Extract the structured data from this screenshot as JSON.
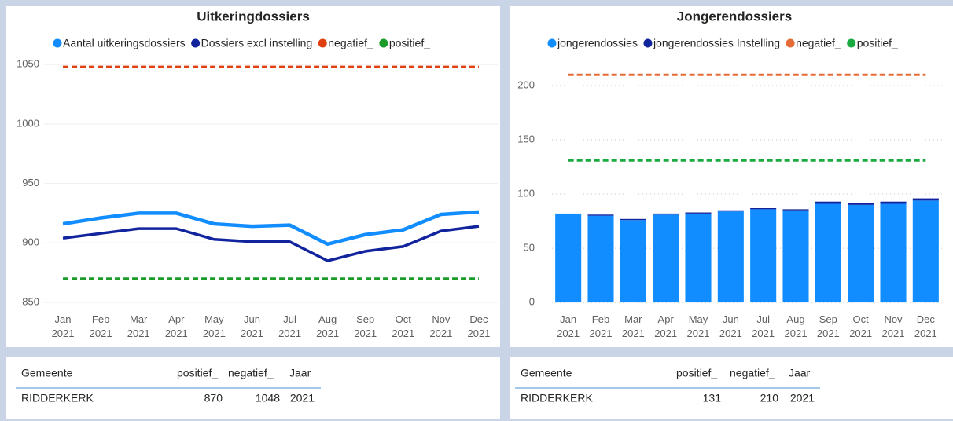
{
  "chart_data": [
    {
      "type": "line",
      "title": "Uitkeringdossiers",
      "categories": [
        "Jan 2021",
        "Feb 2021",
        "Mar 2021",
        "Apr 2021",
        "May 2021",
        "Jun 2021",
        "Jul 2021",
        "Aug 2021",
        "Sep 2021",
        "Oct 2021",
        "Nov 2021",
        "Dec 2021"
      ],
      "series": [
        {
          "name": "Aantal uitkeringsdossiers",
          "color": "#118dff",
          "values": [
            916,
            921,
            925,
            925,
            916,
            914,
            915,
            899,
            907,
            911,
            924,
            926
          ]
        },
        {
          "name": "Dossiers excl instelling",
          "color": "#12239e",
          "values": [
            904,
            908,
            912,
            912,
            903,
            901,
            901,
            885,
            893,
            897,
            910,
            914
          ]
        },
        {
          "name": "negatief_",
          "color": "#e0400f",
          "dashed": true,
          "values": [
            1048,
            1048,
            1048,
            1048,
            1048,
            1048,
            1048,
            1048,
            1048,
            1048,
            1048,
            1048
          ]
        },
        {
          "name": "positief_",
          "color": "#1a9b2a",
          "dashed": true,
          "values": [
            870,
            870,
            870,
            870,
            870,
            870,
            870,
            870,
            870,
            870,
            870,
            870
          ]
        }
      ],
      "ylim": [
        845,
        1058
      ],
      "yticks": [
        850,
        900,
        950,
        1000,
        1050
      ],
      "grid": true
    },
    {
      "type": "bar",
      "stacked": true,
      "title": "Jongerendossiers",
      "categories": [
        "Jan 2021",
        "Feb 2021",
        "Mar 2021",
        "Apr 2021",
        "May 2021",
        "Jun 2021",
        "Jul 2021",
        "Aug 2021",
        "Sep 2021",
        "Oct 2021",
        "Nov 2021",
        "Dec 2021"
      ],
      "series": [
        {
          "name": "jongerendossies",
          "color": "#118dff",
          "values": [
            82,
            80,
            76,
            81,
            82,
            84,
            86,
            85,
            91,
            90,
            91,
            94
          ]
        },
        {
          "name": "jongerendossies Instelling",
          "color": "#12239e",
          "values": [
            0,
            1,
            1,
            1,
            1,
            1,
            1,
            1,
            2,
            2,
            2,
            2
          ]
        },
        {
          "name": "negatief_",
          "color": "#e66c37",
          "type": "line",
          "dashed": true,
          "values": [
            210,
            210,
            210,
            210,
            210,
            210,
            210,
            210,
            210,
            210,
            210,
            210
          ]
        },
        {
          "name": "positief_",
          "color": "#1aab40",
          "type": "line",
          "dashed": true,
          "values": [
            131,
            131,
            131,
            131,
            131,
            131,
            131,
            131,
            131,
            131,
            131,
            131
          ]
        }
      ],
      "ylim": [
        -5,
        225
      ],
      "yticks": [
        0,
        50,
        100,
        150,
        200
      ],
      "grid": true
    }
  ],
  "tables": [
    {
      "columns": [
        "Gemeente",
        "positief_",
        "negatief_",
        "Jaar"
      ],
      "rows": [
        [
          "RIDDERKERK",
          870,
          1048,
          2021
        ]
      ]
    },
    {
      "columns": [
        "Gemeente",
        "positief_",
        "negatief_",
        "Jaar"
      ],
      "rows": [
        [
          "RIDDERKERK",
          131,
          210,
          2021
        ]
      ]
    }
  ]
}
